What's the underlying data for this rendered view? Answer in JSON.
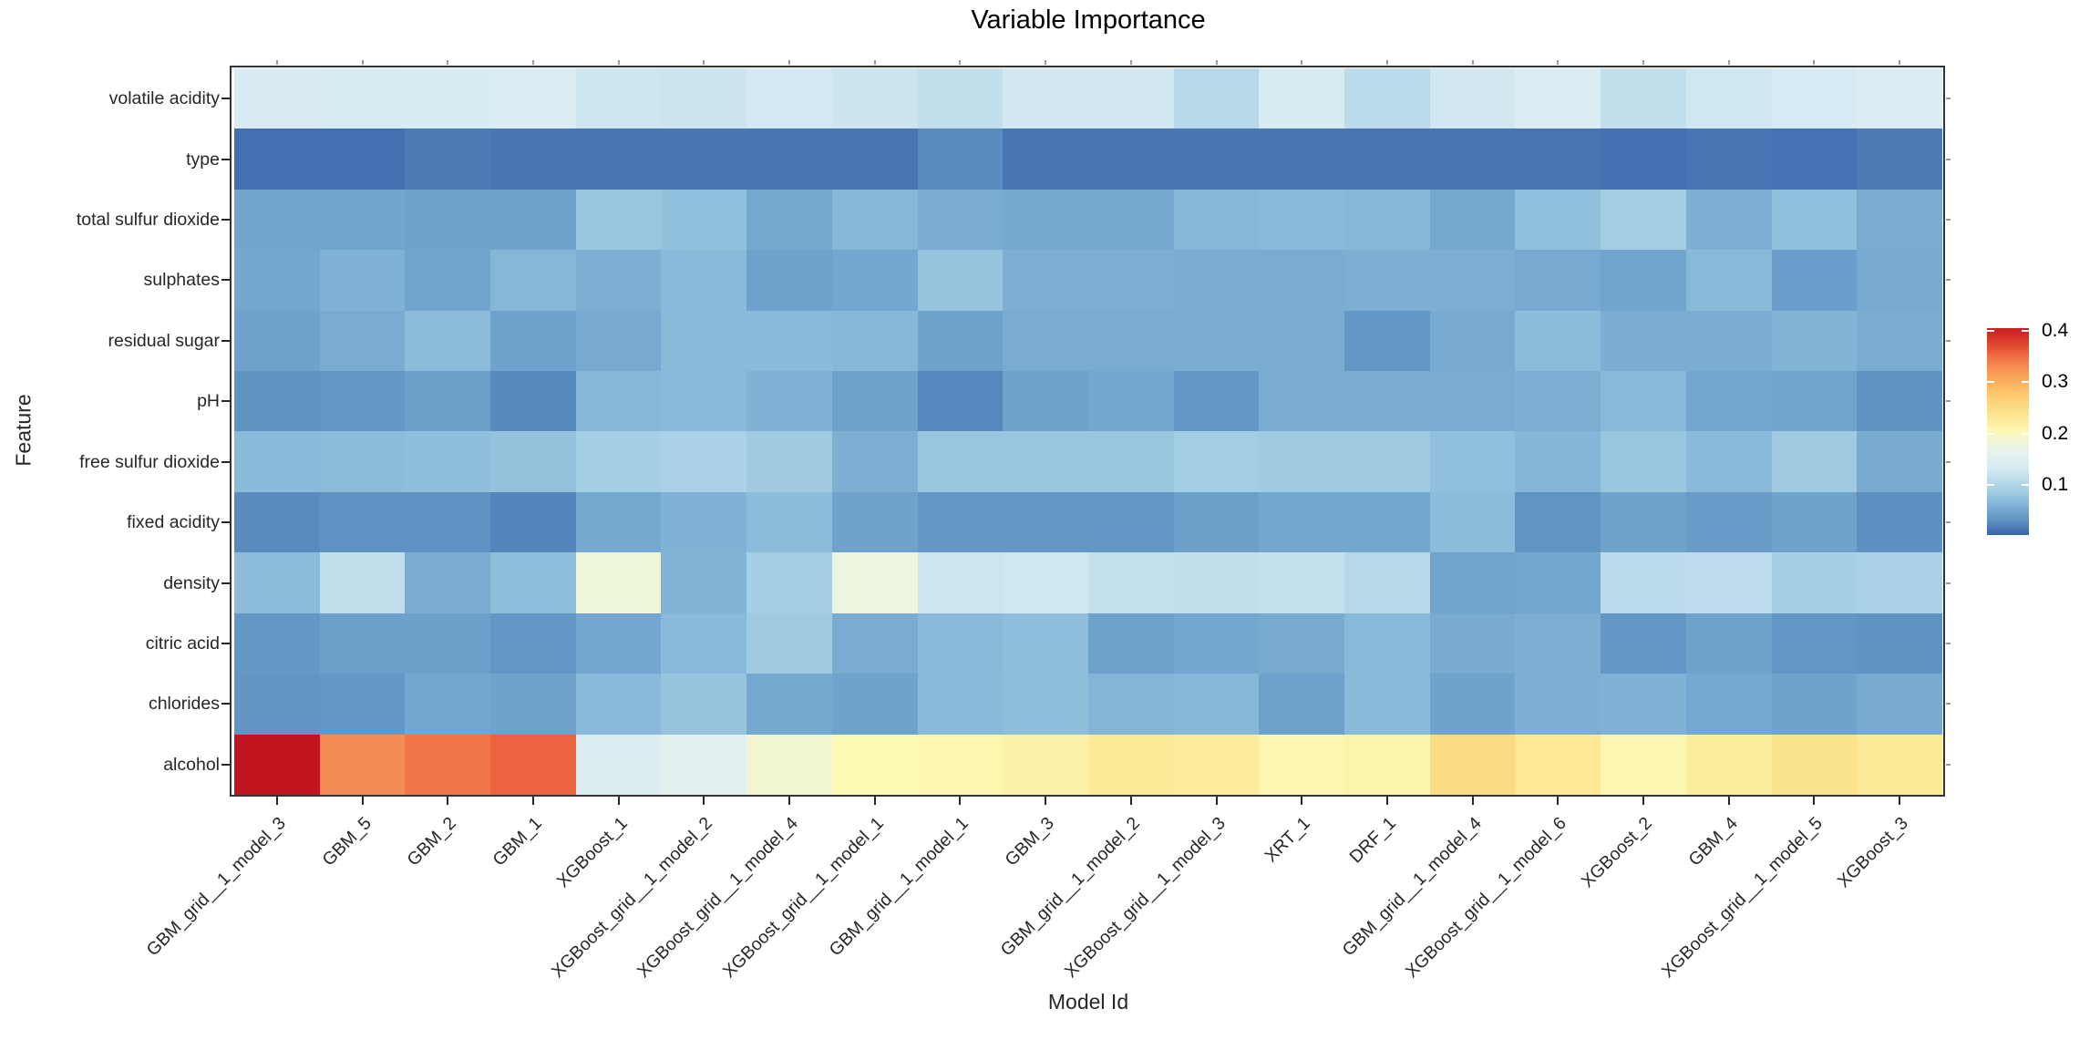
{
  "title": "Variable Importance",
  "x_axis_title": "Model Id",
  "y_axis_title": "Feature",
  "colors": {
    "low": "#3a63ab",
    "mid": "#fcf9b4",
    "high": "#bc0f1d",
    "text": "#262626",
    "frame": "#333333",
    "background": "#ffffff"
  },
  "legend": {
    "position": "right",
    "tick_labels": [
      "0.4",
      "0.3",
      "0.2",
      "0.1"
    ],
    "tick_values": [
      0.4,
      0.3,
      0.2,
      0.1
    ]
  },
  "chart_data": {
    "type": "heatmap",
    "title": "Variable Importance",
    "xlabel": "Model Id",
    "ylabel": "Feature",
    "colormap": "RdYlBu_r",
    "vmin": 0.003,
    "vmax": 0.405,
    "x_tick_rotation": 45,
    "grid": false,
    "legend_position": "right",
    "columns": [
      "GBM_grid__1_model_3",
      "GBM_5",
      "GBM_2",
      "GBM_1",
      "XGBoost_1",
      "XGBoost_grid__1_model_2",
      "XGBoost_grid__1_model_4",
      "XGBoost_grid__1_model_1",
      "GBM_grid__1_model_1",
      "GBM_3",
      "GBM_grid__1_model_2",
      "XGBoost_grid__1_model_3",
      "XRT_1",
      "DRF_1",
      "GBM_grid__1_model_4",
      "XGBoost_grid__1_model_6",
      "XGBoost_2",
      "GBM_4",
      "XGBoost_grid__1_model_5",
      "XGBoost_3"
    ],
    "rows": [
      "volatile acidity",
      "type",
      "total sulfur dioxide",
      "sulphates",
      "residual sugar",
      "pH",
      "free sulfur dioxide",
      "fixed acidity",
      "density",
      "citric acid",
      "chlorides",
      "alcohol"
    ],
    "values": [
      [
        0.138,
        0.135,
        0.137,
        0.14,
        0.127,
        0.124,
        0.131,
        0.124,
        0.115,
        0.13,
        0.13,
        0.105,
        0.135,
        0.11,
        0.13,
        0.14,
        0.115,
        0.128,
        0.134,
        0.142
      ],
      [
        0.012,
        0.012,
        0.018,
        0.015,
        0.015,
        0.016,
        0.015,
        0.015,
        0.028,
        0.015,
        0.015,
        0.015,
        0.015,
        0.015,
        0.014,
        0.014,
        0.012,
        0.015,
        0.013,
        0.018
      ],
      [
        0.048,
        0.048,
        0.046,
        0.046,
        0.08,
        0.075,
        0.052,
        0.065,
        0.056,
        0.052,
        0.052,
        0.065,
        0.068,
        0.065,
        0.052,
        0.074,
        0.088,
        0.058,
        0.074,
        0.055
      ],
      [
        0.05,
        0.06,
        0.047,
        0.065,
        0.058,
        0.068,
        0.045,
        0.05,
        0.078,
        0.058,
        0.058,
        0.055,
        0.055,
        0.058,
        0.058,
        0.053,
        0.048,
        0.067,
        0.041,
        0.053
      ],
      [
        0.045,
        0.055,
        0.07,
        0.045,
        0.053,
        0.068,
        0.068,
        0.065,
        0.046,
        0.055,
        0.055,
        0.056,
        0.055,
        0.035,
        0.053,
        0.07,
        0.057,
        0.057,
        0.062,
        0.055
      ],
      [
        0.032,
        0.035,
        0.043,
        0.026,
        0.065,
        0.068,
        0.06,
        0.046,
        0.025,
        0.046,
        0.05,
        0.035,
        0.055,
        0.055,
        0.055,
        0.058,
        0.067,
        0.05,
        0.047,
        0.032
      ],
      [
        0.068,
        0.07,
        0.073,
        0.076,
        0.09,
        0.095,
        0.085,
        0.058,
        0.08,
        0.08,
        0.08,
        0.088,
        0.085,
        0.085,
        0.074,
        0.064,
        0.08,
        0.068,
        0.085,
        0.054
      ],
      [
        0.027,
        0.031,
        0.031,
        0.023,
        0.052,
        0.06,
        0.07,
        0.046,
        0.035,
        0.035,
        0.035,
        0.043,
        0.05,
        0.05,
        0.07,
        0.033,
        0.046,
        0.04,
        0.046,
        0.03
      ],
      [
        0.07,
        0.115,
        0.055,
        0.072,
        0.185,
        0.062,
        0.09,
        0.18,
        0.125,
        0.128,
        0.118,
        0.115,
        0.118,
        0.105,
        0.048,
        0.05,
        0.11,
        0.112,
        0.09,
        0.095
      ],
      [
        0.035,
        0.044,
        0.044,
        0.035,
        0.05,
        0.068,
        0.085,
        0.055,
        0.068,
        0.073,
        0.045,
        0.05,
        0.054,
        0.068,
        0.054,
        0.058,
        0.035,
        0.046,
        0.035,
        0.032
      ],
      [
        0.034,
        0.035,
        0.05,
        0.046,
        0.068,
        0.078,
        0.052,
        0.046,
        0.068,
        0.072,
        0.063,
        0.066,
        0.045,
        0.068,
        0.046,
        0.058,
        0.06,
        0.051,
        0.046,
        0.054
      ],
      [
        0.415,
        0.33,
        0.345,
        0.355,
        0.145,
        0.155,
        0.19,
        0.205,
        0.21,
        0.215,
        0.228,
        0.225,
        0.208,
        0.212,
        0.25,
        0.232,
        0.208,
        0.222,
        0.242,
        0.23
      ]
    ]
  }
}
